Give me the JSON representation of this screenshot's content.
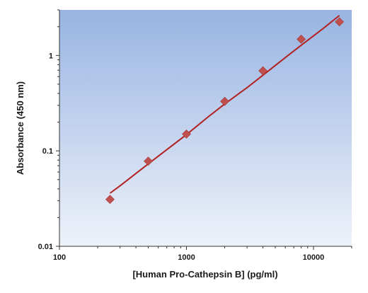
{
  "chart_data": {
    "type": "scatter",
    "title": "",
    "xlabel": "[Human Pro-Cathepsin B] (pg/ml)",
    "ylabel": "Absorbance (450 nm)",
    "xscale": "log",
    "yscale": "log",
    "xlim": [
      100,
      20000
    ],
    "ylim": [
      0.01,
      3
    ],
    "x_ticks": [
      100,
      1000,
      10000
    ],
    "x_tick_labels": [
      "100",
      "1000",
      "10000"
    ],
    "y_ticks": [
      0.01,
      0.1,
      1
    ],
    "y_tick_labels": [
      "0.01",
      "0.1",
      "1"
    ],
    "grid": false,
    "legend": "none",
    "series": [
      {
        "marker": "diamond",
        "x": [
          250,
          500,
          1000,
          2000,
          4000,
          8000,
          16000
        ],
        "y": [
          0.031,
          0.078,
          0.15,
          0.33,
          0.69,
          1.48,
          2.25
        ]
      }
    ],
    "fit_curve": {
      "x": [
        250,
        300,
        400,
        500,
        700,
        1000,
        1500,
        2000,
        3000,
        4000,
        6000,
        8000,
        12000,
        16000
      ],
      "y": [
        0.036,
        0.043,
        0.058,
        0.073,
        0.103,
        0.148,
        0.23,
        0.31,
        0.46,
        0.62,
        0.95,
        1.28,
        1.93,
        2.62
      ]
    },
    "colors": {
      "plot_bg_top": "#98b4e2",
      "plot_bg_bottom": "#eef2fa",
      "marker": "#c0504d",
      "curve": "#b22222",
      "axis": "#333333"
    }
  }
}
